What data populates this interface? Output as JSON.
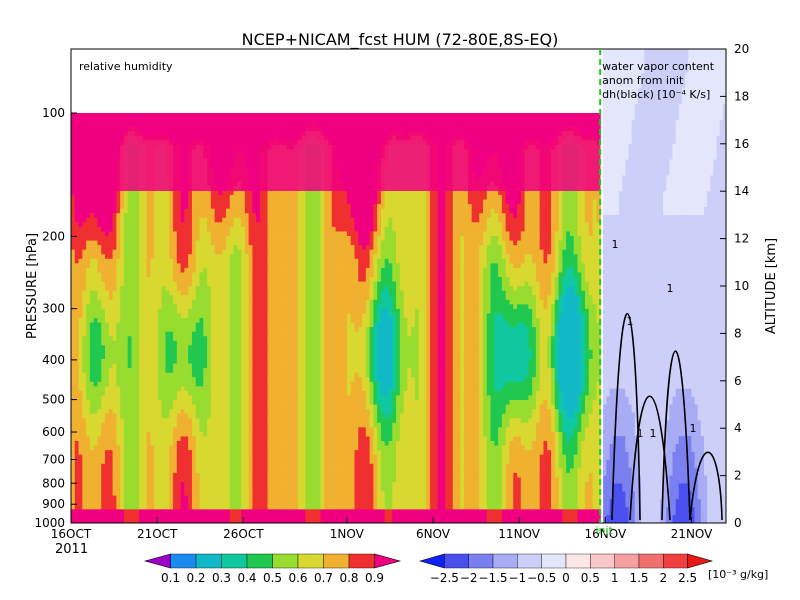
{
  "chart_data": {
    "type": "heatmap",
    "title": "NCEP+NICAM_fcst HUM (72-80E,8S-EQ)",
    "left_panel_label": "relative humidity",
    "right_panel_label_lines": [
      "water vapor content",
      "anom from init",
      "dh(black) [10⁻⁴ K/s]"
    ],
    "ylabel_left": "PRESSURE [hPa]",
    "ylabel_right": "ALTITUDE [km]",
    "pressure_ticks": [
      "100",
      "200",
      "300",
      "400",
      "500",
      "600",
      "700",
      "800",
      "900",
      "1000"
    ],
    "pressure_values": [
      100,
      200,
      300,
      400,
      500,
      600,
      700,
      800,
      900,
      1000
    ],
    "altitude_ticks": [
      "0",
      "2",
      "4",
      "6",
      "8",
      "10",
      "12",
      "14",
      "16",
      "18",
      "20"
    ],
    "altitude_values": [
      0,
      2,
      4,
      6,
      8,
      10,
      12,
      14,
      16,
      18,
      20
    ],
    "x_tick_labels": [
      "16OCT",
      "21OCT",
      "26OCT",
      "1NOV",
      "6NOV",
      "11NOV",
      "16NOV",
      "21NOV"
    ],
    "x_tick_days": [
      0,
      5,
      10,
      16,
      21,
      26,
      31,
      36
    ],
    "x_year_label": "2011",
    "init_label": "init",
    "init_day": 30.7,
    "x_range_days": [
      0,
      38
    ],
    "contour_label": "1",
    "colorbar_rh": {
      "labels": [
        "0.1",
        "0.2",
        "0.3",
        "0.4",
        "0.5",
        "0.6",
        "0.7",
        "0.8",
        "0.9"
      ],
      "colors": [
        "#9a00c8",
        "#1a8cf0",
        "#10b8c8",
        "#10c8a0",
        "#20c850",
        "#98dc30",
        "#d8d830",
        "#f0b030",
        "#f03030",
        "#f00080"
      ]
    },
    "colorbar_anom": {
      "labels": [
        "−2.5",
        "−2",
        "−1.5",
        "−1",
        "−0.5",
        "0",
        "0.5",
        "1",
        "1.5",
        "2",
        "2.5"
      ],
      "unit": "[10⁻³ g/kg]",
      "colors": [
        "#1020f0",
        "#4a50f0",
        "#7a80f0",
        "#a8acf4",
        "#ccd0f8",
        "#e4e6fc",
        "#fde6e6",
        "#f8c8c8",
        "#f4a0a0",
        "#f07070",
        "#f04040",
        "#e81818"
      ]
    }
  }
}
